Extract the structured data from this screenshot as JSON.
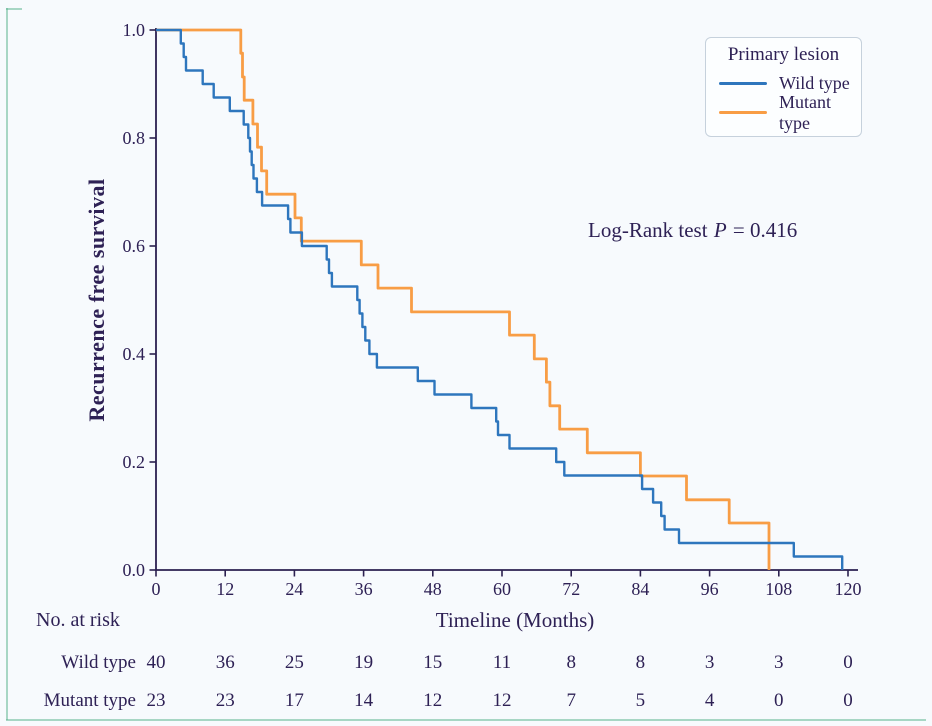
{
  "figure": {
    "background": "#f7fafd",
    "text_color": "#2e2155",
    "axis_color": "#2b2050",
    "edge_artifact_color": "rgba(88,178,140,0.5)"
  },
  "axes": {
    "x_label": "Timeline (Months)",
    "y_label": "Recurrence free survival"
  },
  "annotation": {
    "prefix": "Log-Rank test ",
    "italic": "P",
    "suffix": " = 0.416"
  },
  "legend": {
    "title": "Primary lesion",
    "entries": [
      {
        "label": "Wild type",
        "color": "#2e76bd"
      },
      {
        "label": "Mutant type",
        "color": "#f89d45"
      }
    ]
  },
  "risk_table": {
    "title": "No. at risk"
  },
  "chart_data": {
    "type": "line",
    "subtype": "kaplan-meier-step-survival",
    "title": "",
    "xlabel": "Timeline (Months)",
    "ylabel": "Recurrence free survival",
    "xlim": [
      0,
      126
    ],
    "ylim": [
      0.0,
      1.0
    ],
    "x_ticks": [
      0,
      12,
      24,
      36,
      48,
      60,
      72,
      84,
      96,
      108,
      120
    ],
    "y_ticks": [
      {
        "value": 0.0,
        "label": "0.0"
      },
      {
        "value": 0.2,
        "label": "0.2"
      },
      {
        "value": 0.4,
        "label": "0.4"
      },
      {
        "value": 0.6,
        "label": "0.6"
      },
      {
        "value": 0.8,
        "label": "0.8"
      },
      {
        "value": 1.0,
        "label": "1.0"
      }
    ],
    "grid": false,
    "legend_position": "upper right",
    "annotation_text": "Log-Rank test P = 0.416",
    "series": [
      {
        "name": "Wild type",
        "color": "#2e76bd",
        "stroke_width": 2.4,
        "points": [
          [
            0,
            1.0
          ],
          [
            4.3,
            0.975
          ],
          [
            4.8,
            0.95
          ],
          [
            5.2,
            0.925
          ],
          [
            8.1,
            0.9
          ],
          [
            10.0,
            0.875
          ],
          [
            12.8,
            0.85
          ],
          [
            15.2,
            0.825
          ],
          [
            16.0,
            0.8
          ],
          [
            16.3,
            0.775
          ],
          [
            16.6,
            0.75
          ],
          [
            16.9,
            0.725
          ],
          [
            17.5,
            0.7
          ],
          [
            18.4,
            0.675
          ],
          [
            22.9,
            0.65
          ],
          [
            23.3,
            0.625
          ],
          [
            25.3,
            0.6
          ],
          [
            29.6,
            0.575
          ],
          [
            30.0,
            0.55
          ],
          [
            30.5,
            0.525
          ],
          [
            34.9,
            0.5
          ],
          [
            35.3,
            0.475
          ],
          [
            35.8,
            0.45
          ],
          [
            36.3,
            0.425
          ],
          [
            37.0,
            0.4
          ],
          [
            38.3,
            0.375
          ],
          [
            45.4,
            0.35
          ],
          [
            48.3,
            0.325
          ],
          [
            54.7,
            0.3
          ],
          [
            59.0,
            0.275
          ],
          [
            59.3,
            0.25
          ],
          [
            61.3,
            0.225
          ],
          [
            69.4,
            0.2
          ],
          [
            70.8,
            0.175
          ],
          [
            84.3,
            0.15
          ],
          [
            86.2,
            0.125
          ],
          [
            87.6,
            0.1
          ],
          [
            88.2,
            0.075
          ],
          [
            90.7,
            0.05
          ],
          [
            110.6,
            0.025
          ],
          [
            119.0,
            0.0
          ]
        ]
      },
      {
        "name": "Mutant type",
        "color": "#f89d45",
        "stroke_width": 2.8,
        "points": [
          [
            0,
            1.0
          ],
          [
            14.7,
            0.957
          ],
          [
            15.0,
            0.913
          ],
          [
            15.3,
            0.87
          ],
          [
            16.8,
            0.826
          ],
          [
            17.6,
            0.783
          ],
          [
            18.3,
            0.739
          ],
          [
            19.2,
            0.696
          ],
          [
            24.1,
            0.652
          ],
          [
            25.2,
            0.609
          ],
          [
            35.6,
            0.565
          ],
          [
            38.5,
            0.522
          ],
          [
            44.3,
            0.478
          ],
          [
            61.3,
            0.435
          ],
          [
            65.6,
            0.391
          ],
          [
            67.7,
            0.348
          ],
          [
            68.3,
            0.304
          ],
          [
            70.0,
            0.261
          ],
          [
            74.8,
            0.217
          ],
          [
            84.0,
            0.174
          ],
          [
            92.0,
            0.13
          ],
          [
            99.4,
            0.087
          ],
          [
            106.3,
            0.0
          ]
        ]
      }
    ],
    "at_risk": {
      "title": "No. at risk",
      "times": [
        0,
        12,
        24,
        36,
        48,
        60,
        72,
        84,
        96,
        108,
        120
      ],
      "rows": [
        {
          "label": "Wild type",
          "values": [
            40,
            36,
            25,
            19,
            15,
            11,
            8,
            8,
            3,
            3,
            0
          ]
        },
        {
          "label": "Mutant type",
          "values": [
            23,
            23,
            17,
            14,
            12,
            12,
            7,
            5,
            4,
            0,
            0
          ]
        }
      ]
    }
  }
}
